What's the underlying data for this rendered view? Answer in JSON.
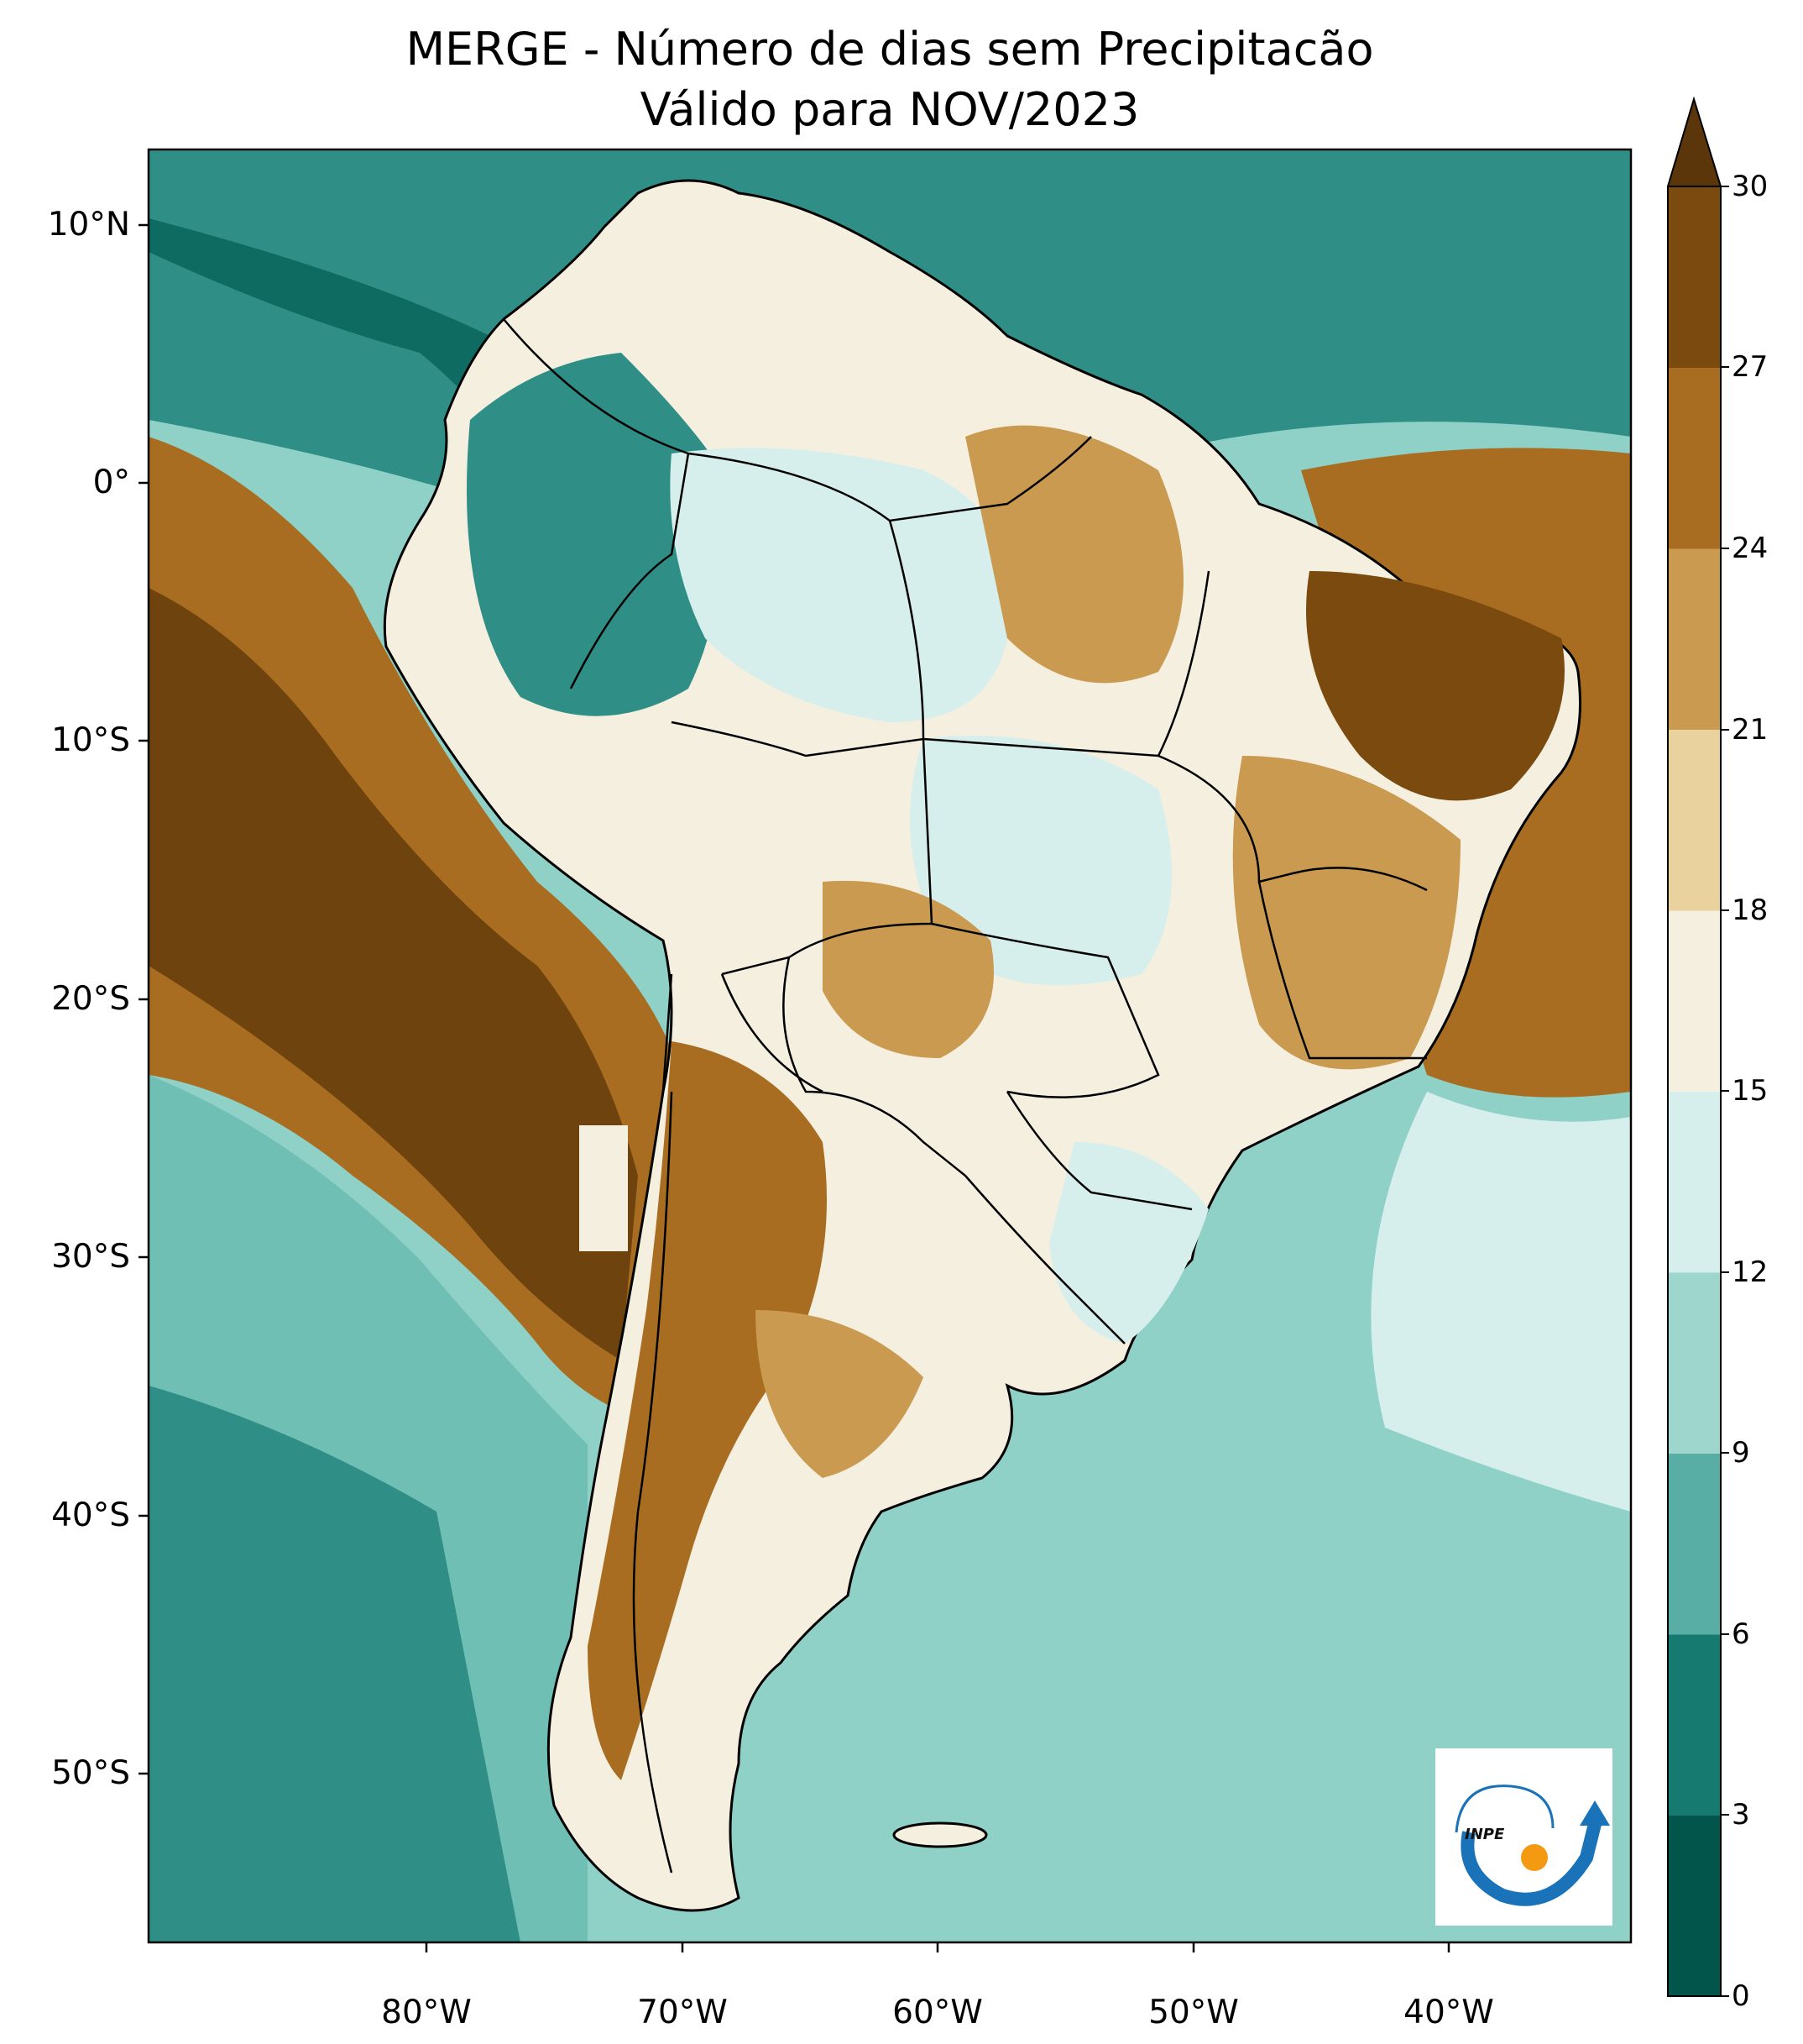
{
  "title": {
    "line1": "MERGE - Número de dias sem Precipitacão",
    "line2": "Válido para NOV/2023"
  },
  "lat_ticks": [
    "10°N",
    "0°",
    "10°S",
    "20°S",
    "30°S",
    "40°S",
    "50°S"
  ],
  "lon_ticks": [
    "80°W",
    "70°W",
    "60°W",
    "50°W",
    "40°W"
  ],
  "colorbar": {
    "ticks": [
      "0",
      "3",
      "6",
      "9",
      "12",
      "15",
      "18",
      "21",
      "24",
      "27",
      "30"
    ],
    "colors": [
      "#01554a",
      "#167a71",
      "#58aea4",
      "#9ed6ce",
      "#d6efec",
      "#f4efdf",
      "#e9d29e",
      "#c99a4f",
      "#a86d21",
      "#7a4a0f"
    ],
    "extend_color": "#5a360a"
  },
  "logo": {
    "text": "INPE"
  },
  "map": {
    "lon_range": [
      -90,
      -32
    ],
    "lat_range": [
      -56,
      13
    ],
    "ocean_color": "#6fbfb4"
  }
}
